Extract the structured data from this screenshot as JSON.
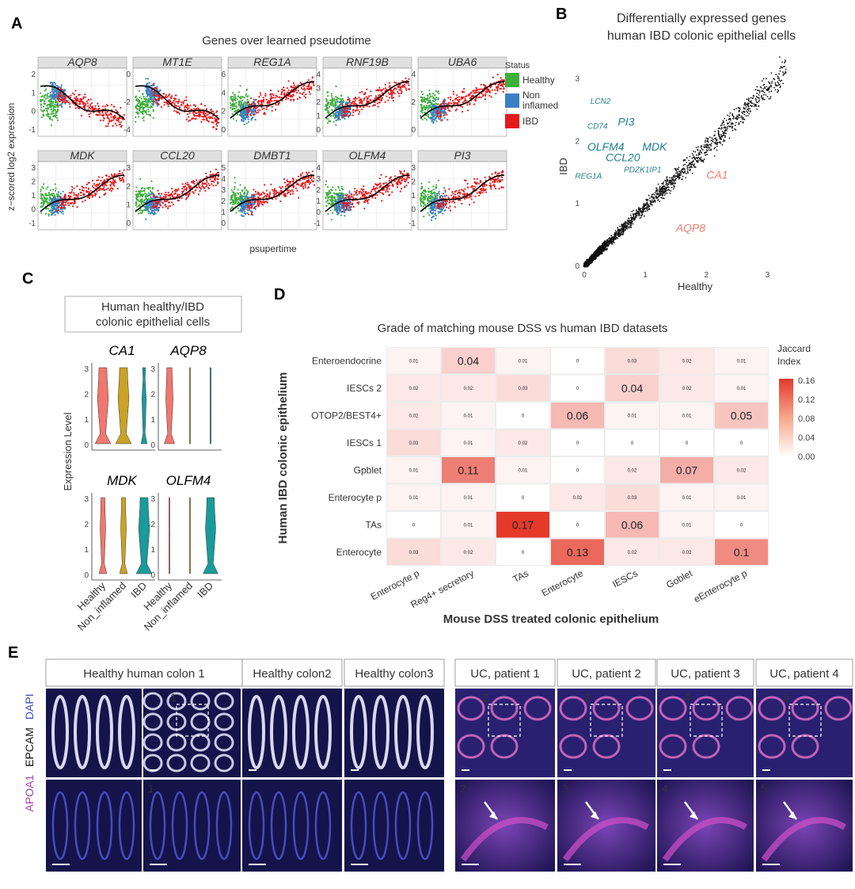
{
  "panels": {
    "a": "A",
    "b": "B",
    "c": "C",
    "d": "D",
    "e": "E"
  },
  "panel_a": {
    "title": "Genes over learned pseudotime",
    "ylabel": "z−scored log2 expression",
    "xlabel": "psupertime",
    "legend_title": "Status",
    "legend": [
      {
        "label": "Healthy",
        "color": "#3fae3c"
      },
      {
        "label": "Non inflamed",
        "color": "#3b7fc4"
      },
      {
        "label": "IBD",
        "color": "#e41a1c"
      }
    ],
    "genes": [
      "AQP8",
      "MT1E",
      "REG1A",
      "RNF19B",
      "UBA6",
      "MDK",
      "CCL20",
      "DMBT1",
      "OLFM4",
      "PI3"
    ],
    "yticks": [
      [
        "-1",
        "0",
        "1",
        "2"
      ],
      [
        "-4",
        "-2",
        "0"
      ],
      [
        "0",
        "2",
        "4",
        "6"
      ],
      [
        "0",
        "1",
        "2",
        "3",
        "4"
      ],
      [
        "0",
        "2",
        "4"
      ],
      [
        "-1",
        "0",
        "1",
        "2",
        "3"
      ],
      [
        "0",
        "1",
        "2",
        "3"
      ],
      [
        "0",
        "1",
        "2",
        "3",
        "4",
        "5"
      ],
      [
        "-1",
        "0",
        "1",
        "2",
        "3",
        "4"
      ],
      [
        "-1",
        "0",
        "1",
        "2",
        "3"
      ]
    ],
    "trend": [
      "down",
      "down",
      "up",
      "up",
      "up",
      "up",
      "up",
      "up",
      "up",
      "up"
    ]
  },
  "chart_data": [
    {
      "type": "scatter",
      "title": "Differentially expressed genes human IBD colonic epithelial cells",
      "xlabel": "Healthy",
      "ylabel": "IBD",
      "xlim": [
        0,
        3.5
      ],
      "ylim": [
        0,
        3.5
      ],
      "xticks": [
        "0",
        "1",
        "2",
        "3"
      ],
      "yticks": [
        "0",
        "1",
        "2",
        "3"
      ],
      "highlighted": [
        {
          "gene": "LCN2",
          "x": 0.1,
          "y": 2.6,
          "group": "up"
        },
        {
          "gene": "CD74",
          "x": 0.05,
          "y": 2.2,
          "group": "up"
        },
        {
          "gene": "PI3",
          "x": 0.55,
          "y": 2.25,
          "group": "up"
        },
        {
          "gene": "OLFM4",
          "x": 0.05,
          "y": 1.85,
          "group": "up"
        },
        {
          "gene": "MDK",
          "x": 0.95,
          "y": 1.85,
          "group": "up"
        },
        {
          "gene": "CCL20",
          "x": 0.35,
          "y": 1.68,
          "group": "up"
        },
        {
          "gene": "PDZK1IP1",
          "x": 0.65,
          "y": 1.5,
          "group": "up"
        },
        {
          "gene": "REG1A",
          "x": -0.15,
          "y": 1.4,
          "group": "up"
        },
        {
          "gene": "CA1",
          "x": 2.0,
          "y": 1.4,
          "group": "down"
        },
        {
          "gene": "AQP8",
          "x": 1.5,
          "y": 0.55,
          "group": "down"
        }
      ],
      "colors": {
        "up": "#1f7f8f",
        "down": "#f07c6c"
      }
    },
    {
      "type": "heatmap",
      "title": "Grade of matching mouse DSS vs human IBD datasets",
      "xlabel": "Mouse DSS treated colonic epithelium",
      "ylabel": "Human IBD colonic epithelium",
      "x": [
        "Enterocyte p",
        "Reg4+ secretory",
        "TAs",
        "Enterocyte",
        "IESCs",
        "Goblet",
        "eEnterocyte p"
      ],
      "y": [
        "Enteroendocrine",
        "IESCs 2",
        "OTOP2/BEST4+",
        "IESCs 1",
        "Gpblet",
        "Enterocyte p",
        "TAs",
        "Enterocyte"
      ],
      "values": [
        [
          0.01,
          0.04,
          0.01,
          0,
          0.03,
          0.02,
          0.01
        ],
        [
          0.02,
          0.02,
          0.03,
          0,
          0.04,
          0.02,
          0.01
        ],
        [
          0.02,
          0.01,
          0,
          0.06,
          0.01,
          0.01,
          0.05
        ],
        [
          0.03,
          0.01,
          0.02,
          0,
          0,
          0,
          0
        ],
        [
          0.01,
          0.11,
          0.01,
          0,
          0.02,
          0.07,
          0.02
        ],
        [
          0.01,
          0.01,
          0,
          0.02,
          0.03,
          0.01,
          0.01
        ],
        [
          0,
          0.01,
          0.17,
          0,
          0.06,
          0.01,
          0
        ],
        [
          0.03,
          0.02,
          0,
          0.13,
          0.02,
          0.02,
          0.1
        ]
      ],
      "legend_title": "Jaccard Index",
      "legend_ticks": [
        "0.16",
        "0.12",
        "0.08",
        "0.04",
        "0.00"
      ],
      "range": [
        0,
        0.17
      ]
    },
    {
      "type": "violin",
      "title": "Human healthy/IBD colonic epithelial cells",
      "ylabel": "Expression Level",
      "categories": [
        "Healthy",
        "Non_inflamed",
        "IBD"
      ],
      "genes": [
        "CA1",
        "AQP8",
        "MDK",
        "OLFM4"
      ],
      "yticks": [
        "0",
        "1",
        "2",
        "3"
      ],
      "colors": [
        "#f0776e",
        "#c9a227",
        "#1a9a9a"
      ]
    }
  ],
  "panel_e": {
    "headers": [
      "Healthy human colon 1",
      "Healthy colon2",
      "Healthy colon3",
      "UC, patient 1",
      "UC, patient 2",
      "UC, patient 3",
      "UC, patient 4"
    ],
    "stain_apoa1": "APOA1",
    "stain_epcam": "EPCAM",
    "stain_dapi": "DAPI",
    "insets": [
      "1",
      "2",
      "3",
      "4",
      "5"
    ]
  }
}
